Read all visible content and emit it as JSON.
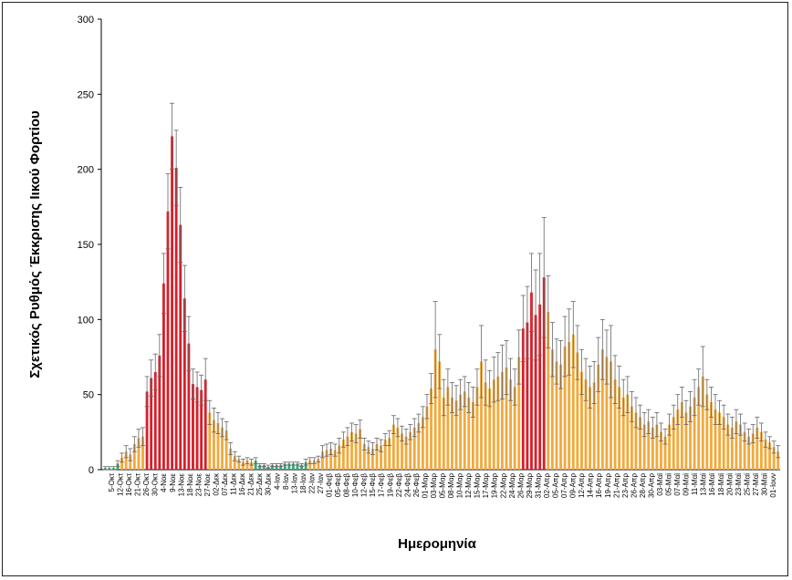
{
  "chart_data": {
    "type": "bar",
    "title": "",
    "xlabel": "Ημερομηνία",
    "ylabel": "Σχετικός Ρυθμός Έκκρισης Ιικού Φορτίου",
    "ylim": [
      0,
      300
    ],
    "yticks": [
      0,
      50,
      100,
      150,
      200,
      250,
      300
    ],
    "grid": false,
    "legend": "none",
    "colors": {
      "green": "#3aa57a",
      "orange": "#f2a93b",
      "red": "#d61f2b",
      "error": "#666666"
    },
    "tick_labels": [
      "5-Οκτ",
      "12-Οκτ",
      "16-Οκτ",
      "21-Οκτ",
      "26-Οκτ",
      "30-Οκτ",
      "4-Νοε",
      "9-Νοε",
      "13-Νοε",
      "18-Νοε",
      "23-Νοε",
      "27-Νοε",
      "02-Δεκ",
      "07-Δεκ",
      "11-Δεκ",
      "16-Δεκ",
      "21-Δεκ",
      "25-Δεκ",
      "30-Δεκ",
      "4-Ιαν",
      "8-Ιαν",
      "13-Ιαν",
      "18-Ιαν",
      "22-Ιαν",
      "27-Ιαν",
      "01-Φεβ",
      "05-Φεβ",
      "08-Φεβ",
      "10-Φεβ",
      "12-Φεβ",
      "15-Φεβ",
      "17-Φεβ",
      "19-Φεβ",
      "22-Φεβ",
      "24-Φεβ",
      "26-Φεβ",
      "01-Μαρ",
      "03-Μαρ",
      "05-Μαρ",
      "08-Μαρ",
      "10-Μαρ",
      "12-Μαρ",
      "15-Μαρ",
      "17-Μαρ",
      "19-Μαρ",
      "22-Μαρ",
      "24-Μαρ",
      "26-Μαρ",
      "29-Μαρ",
      "31-Μαρ",
      "02-Απρ",
      "05-Απρ",
      "07-Απρ",
      "09-Απρ",
      "12-Απρ",
      "14-Απρ",
      "16-Απρ",
      "19-Απρ",
      "21-Απρ",
      "23-Απρ",
      "26-Απρ",
      "28-Απρ",
      "30-Απρ",
      "03-Μαϊ",
      "05-Μαϊ",
      "07-Μαϊ",
      "09-Μαϊ",
      "11-Μαϊ",
      "13-Μαϊ",
      "16-Μαϊ",
      "18-Μαϊ",
      "20-Μαϊ",
      "23-Μαϊ",
      "25-Μαϊ",
      "27-Μαϊ",
      "30-Μαϊ",
      "01-Ιουν"
    ],
    "values": [
      1,
      1,
      1,
      4,
      8,
      12,
      10,
      17,
      21,
      22,
      52,
      61,
      65,
      76,
      124,
      172,
      222,
      201,
      163,
      114,
      84,
      57,
      55,
      53,
      60,
      38,
      33,
      31,
      28,
      26,
      14,
      9,
      7,
      5,
      6,
      5,
      6,
      3,
      3,
      2,
      3,
      3,
      3,
      4,
      4,
      4,
      4,
      3,
      5,
      6,
      6,
      7,
      12,
      13,
      14,
      13,
      16,
      20,
      22,
      25,
      24,
      27,
      17,
      15,
      14,
      17,
      16,
      20,
      21,
      30,
      28,
      24,
      22,
      25,
      28,
      31,
      35,
      42,
      54,
      80,
      72,
      48,
      55,
      48,
      46,
      50,
      52,
      48,
      45,
      55,
      72,
      58,
      54,
      60,
      62,
      65,
      68,
      60,
      55,
      75,
      94,
      98,
      118,
      103,
      110,
      128,
      105,
      80,
      72,
      70,
      82,
      85,
      90,
      78,
      65,
      60,
      55,
      58,
      70,
      80,
      75,
      72,
      60,
      55,
      48,
      50,
      42,
      38,
      35,
      30,
      32,
      28,
      30,
      25,
      22,
      30,
      35,
      40,
      45,
      38,
      42,
      48,
      55,
      62,
      50,
      45,
      40,
      38,
      35,
      30,
      28,
      32,
      30,
      25,
      22,
      24,
      28,
      25,
      20,
      18,
      15,
      12
    ],
    "errors": [
      1,
      1,
      1,
      2,
      3,
      4,
      4,
      5,
      6,
      6,
      10,
      12,
      12,
      14,
      20,
      25,
      22,
      25,
      25,
      22,
      18,
      10,
      10,
      10,
      14,
      8,
      8,
      7,
      6,
      6,
      4,
      3,
      2,
      2,
      2,
      2,
      2,
      1,
      1,
      1,
      1,
      1,
      1,
      1,
      1,
      1,
      1,
      1,
      2,
      2,
      2,
      2,
      4,
      4,
      4,
      4,
      5,
      5,
      6,
      6,
      6,
      6,
      4,
      4,
      4,
      4,
      4,
      4,
      5,
      6,
      6,
      5,
      5,
      5,
      6,
      6,
      7,
      8,
      10,
      32,
      18,
      12,
      12,
      10,
      10,
      10,
      10,
      10,
      10,
      12,
      24,
      15,
      12,
      15,
      16,
      18,
      18,
      14,
      12,
      18,
      22,
      24,
      26,
      30,
      34,
      40,
      24,
      18,
      15,
      16,
      20,
      22,
      22,
      18,
      15,
      14,
      14,
      14,
      18,
      20,
      18,
      24,
      16,
      14,
      12,
      12,
      10,
      10,
      8,
      8,
      8,
      7,
      8,
      6,
      5,
      7,
      8,
      10,
      10,
      8,
      10,
      12,
      12,
      20,
      10,
      10,
      10,
      8,
      8,
      7,
      7,
      8,
      7,
      6,
      5,
      6,
      7,
      6,
      5,
      4,
      4,
      4
    ],
    "colors_per_bar": [
      "g",
      "g",
      "g",
      "g",
      "o",
      "o",
      "o",
      "o",
      "o",
      "o",
      "r",
      "r",
      "r",
      "r",
      "r",
      "r",
      "r",
      "r",
      "r",
      "r",
      "r",
      "r",
      "r",
      "r",
      "r",
      "o",
      "o",
      "o",
      "o",
      "o",
      "o",
      "o",
      "o",
      "o",
      "o",
      "o",
      "g",
      "g",
      "g",
      "g",
      "g",
      "g",
      "g",
      "g",
      "g",
      "g",
      "g",
      "g",
      "g",
      "o",
      "o",
      "o",
      "o",
      "o",
      "o",
      "o",
      "o",
      "o",
      "o",
      "o",
      "o",
      "o",
      "o",
      "o",
      "o",
      "o",
      "o",
      "o",
      "o",
      "o",
      "o",
      "o",
      "o",
      "o",
      "o",
      "o",
      "o",
      "o",
      "o",
      "o",
      "o",
      "o",
      "o",
      "o",
      "o",
      "o",
      "o",
      "o",
      "o",
      "o",
      "o",
      "o",
      "o",
      "o",
      "o",
      "o",
      "o",
      "o",
      "o",
      "o",
      "r",
      "r",
      "r",
      "r",
      "r",
      "r",
      "o",
      "o",
      "o",
      "o",
      "o",
      "o",
      "o",
      "o",
      "o",
      "o",
      "o",
      "o",
      "o",
      "o",
      "o",
      "o",
      "o",
      "o",
      "o",
      "o",
      "o",
      "o",
      "o",
      "o",
      "o",
      "o",
      "o",
      "o",
      "o",
      "o",
      "o",
      "o",
      "o",
      "o",
      "o",
      "o",
      "o",
      "o",
      "o",
      "o",
      "o",
      "o",
      "o",
      "o",
      "o",
      "o",
      "o",
      "o",
      "o",
      "o",
      "o",
      "o",
      "o",
      "o",
      "o"
    ]
  }
}
